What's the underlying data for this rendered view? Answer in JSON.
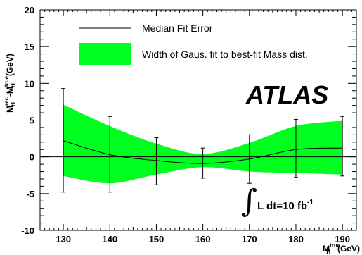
{
  "chart_data": {
    "type": "line",
    "xlabel": {
      "main": "M",
      "sup": "true",
      "sub": "H",
      "unit": "(GeV)"
    },
    "ylabel": {
      "a_main": "M",
      "a_sup": "rec",
      "a_sub": "H",
      "minus": "-",
      "b_main": "M",
      "b_sup": "true",
      "b_sub": "H",
      "unit": "(GeV)"
    },
    "xlim": [
      125,
      193
    ],
    "ylim": [
      -10,
      20
    ],
    "x_ticks": [
      130,
      140,
      150,
      160,
      170,
      180,
      190
    ],
    "y_ticks": [
      -10,
      -5,
      0,
      5,
      10,
      15,
      20
    ],
    "x": [
      130,
      140,
      150,
      160,
      170,
      180,
      190
    ],
    "median": [
      2.2,
      0.3,
      -0.5,
      -0.9,
      -0.3,
      1.0,
      1.2
    ],
    "error_low": [
      -4.8,
      -4.8,
      -3.8,
      -2.9,
      -3.6,
      -2.8,
      -2.6
    ],
    "error_high": [
      9.3,
      5.5,
      2.6,
      1.2,
      3.0,
      5.1,
      5.5
    ],
    "band_low": [
      -2.6,
      -3.6,
      -2.4,
      -1.4,
      -2.0,
      -2.2,
      -2.4
    ],
    "band_high": [
      7.1,
      4.2,
      1.8,
      0.4,
      1.9,
      4.2,
      4.9
    ],
    "series": [
      {
        "name": "Median Fit Error"
      },
      {
        "name": "Width of Gaus. fit to best-fit Mass dist."
      }
    ],
    "colors": {
      "band": "#00ff1e",
      "line": "#000000"
    },
    "annotations": {
      "experiment": "ATLAS",
      "lumi_main": "L dt=10 fb",
      "lumi_sup": "-1"
    }
  }
}
